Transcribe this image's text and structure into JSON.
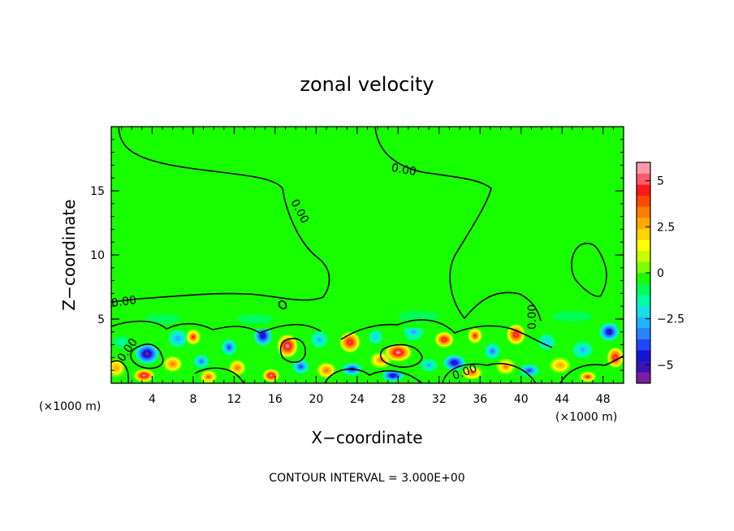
{
  "chart_data": {
    "type": "heatmap",
    "title": "zonal velocity",
    "xlabel": "X−coordinate",
    "ylabel": "Z−coordinate",
    "x_unit": "(×1000 m)",
    "y_unit": "(×1000 m)",
    "xlim": [
      0,
      50
    ],
    "ylim": [
      0,
      20
    ],
    "x_ticks": [
      4,
      8,
      12,
      16,
      20,
      24,
      28,
      32,
      36,
      40,
      44,
      48
    ],
    "y_ticks": [
      5,
      10,
      15
    ],
    "colorbar": {
      "range": [
        -6,
        6
      ],
      "ticks": [
        5,
        2.5,
        0,
        -2.5,
        -5
      ],
      "tick_labels": [
        "5",
        "2.5",
        "0",
        "−2.5",
        "−5"
      ],
      "colors": [
        "#7a1fa0",
        "#3a12b8",
        "#1414d4",
        "#1e46ff",
        "#2a82ff",
        "#20b4ff",
        "#16e0e6",
        "#00ff9e",
        "#00ff55",
        "#18ff00",
        "#7cff00",
        "#c8ff00",
        "#ffff00",
        "#ffd200",
        "#ffaa00",
        "#ff7e00",
        "#ff4a00",
        "#ff1a1a",
        "#ff5a6a",
        "#ff9aa8"
      ]
    },
    "contour_labels": [
      "0.00",
      "0.00",
      "0.00",
      "0.00",
      "0.00",
      "0.00"
    ],
    "contour_interval_text": "CONTOUR INTERVAL = 3.000E+00",
    "field_background_color": "#18ff00",
    "blobs": [
      {
        "x": 1.0,
        "z": 3.2,
        "v": -1.5,
        "sx": 1.2,
        "sz": 0.8
      },
      {
        "x": 0.5,
        "z": 1.2,
        "v": 2.5,
        "sx": 0.8,
        "sz": 0.7
      },
      {
        "x": 3.5,
        "z": 2.3,
        "v": -5.5,
        "sx": 1.3,
        "sz": 0.9
      },
      {
        "x": 3.2,
        "z": 0.6,
        "v": 5.5,
        "sx": 1.0,
        "sz": 0.5
      },
      {
        "x": 6.0,
        "z": 1.5,
        "v": 3.0,
        "sx": 0.9,
        "sz": 0.6
      },
      {
        "x": 6.5,
        "z": 3.5,
        "v": -2.5,
        "sx": 1.2,
        "sz": 0.9
      },
      {
        "x": 8.0,
        "z": 3.6,
        "v": 4.5,
        "sx": 0.7,
        "sz": 0.6
      },
      {
        "x": 8.8,
        "z": 1.7,
        "v": -3.5,
        "sx": 1.0,
        "sz": 0.7
      },
      {
        "x": 9.5,
        "z": 0.5,
        "v": 4.0,
        "sx": 0.8,
        "sz": 0.5
      },
      {
        "x": 11.5,
        "z": 2.8,
        "v": -4.0,
        "sx": 0.9,
        "sz": 0.8
      },
      {
        "x": 12.3,
        "z": 1.2,
        "v": 3.0,
        "sx": 0.8,
        "sz": 0.6
      },
      {
        "x": 14.8,
        "z": 3.7,
        "v": -5.0,
        "sx": 1.0,
        "sz": 0.9
      },
      {
        "x": 15.6,
        "z": 0.6,
        "v": 5.5,
        "sx": 0.8,
        "sz": 0.5
      },
      {
        "x": 17.2,
        "z": 2.9,
        "v": 5.5,
        "sx": 1.0,
        "sz": 0.9
      },
      {
        "x": 18.5,
        "z": 1.3,
        "v": -4.0,
        "sx": 1.0,
        "sz": 0.7
      },
      {
        "x": 20.3,
        "z": 3.4,
        "v": -3.0,
        "sx": 1.0,
        "sz": 0.8
      },
      {
        "x": 21.0,
        "z": 1.0,
        "v": 3.0,
        "sx": 0.9,
        "sz": 0.6
      },
      {
        "x": 23.3,
        "z": 3.2,
        "v": 5.0,
        "sx": 1.0,
        "sz": 0.8
      },
      {
        "x": 23.5,
        "z": 1.1,
        "v": -4.5,
        "sx": 1.2,
        "sz": 0.6
      },
      {
        "x": 25.8,
        "z": 3.6,
        "v": -2.0,
        "sx": 1.0,
        "sz": 0.8
      },
      {
        "x": 26.3,
        "z": 1.8,
        "v": 3.5,
        "sx": 1.0,
        "sz": 0.6
      },
      {
        "x": 28.0,
        "z": 2.4,
        "v": 5.5,
        "sx": 1.3,
        "sz": 0.7
      },
      {
        "x": 27.5,
        "z": 0.6,
        "v": -5.0,
        "sx": 1.2,
        "sz": 0.5
      },
      {
        "x": 29.5,
        "z": 4.0,
        "v": -3.0,
        "sx": 1.2,
        "sz": 0.8
      },
      {
        "x": 31.0,
        "z": 1.4,
        "v": -3.0,
        "sx": 1.0,
        "sz": 0.6
      },
      {
        "x": 32.5,
        "z": 3.4,
        "v": 5.0,
        "sx": 0.9,
        "sz": 0.6
      },
      {
        "x": 33.5,
        "z": 1.6,
        "v": -5.0,
        "sx": 1.2,
        "sz": 0.7
      },
      {
        "x": 35.5,
        "z": 3.7,
        "v": 4.5,
        "sx": 0.7,
        "sz": 0.6
      },
      {
        "x": 35.2,
        "z": 0.8,
        "v": 3.0,
        "sx": 1.0,
        "sz": 0.5
      },
      {
        "x": 37.2,
        "z": 2.5,
        "v": -3.5,
        "sx": 1.0,
        "sz": 0.8
      },
      {
        "x": 38.5,
        "z": 1.3,
        "v": 3.5,
        "sx": 0.9,
        "sz": 0.6
      },
      {
        "x": 39.5,
        "z": 3.8,
        "v": 5.0,
        "sx": 0.9,
        "sz": 0.8
      },
      {
        "x": 40.8,
        "z": 1.0,
        "v": -4.0,
        "sx": 1.2,
        "sz": 0.6
      },
      {
        "x": 42.5,
        "z": 3.2,
        "v": -2.0,
        "sx": 1.2,
        "sz": 0.9
      },
      {
        "x": 43.8,
        "z": 1.4,
        "v": 2.5,
        "sx": 1.0,
        "sz": 0.6
      },
      {
        "x": 46.0,
        "z": 2.6,
        "v": -3.0,
        "sx": 1.2,
        "sz": 0.8
      },
      {
        "x": 46.5,
        "z": 0.5,
        "v": 4.5,
        "sx": 0.8,
        "sz": 0.4
      },
      {
        "x": 48.6,
        "z": 4.0,
        "v": -5.0,
        "sx": 1.1,
        "sz": 0.8
      },
      {
        "x": 49.2,
        "z": 2.0,
        "v": 5.0,
        "sx": 0.8,
        "sz": 0.8
      },
      {
        "x": 5.0,
        "z": 5.0,
        "v": -0.9,
        "sx": 3.5,
        "sz": 0.8
      },
      {
        "x": 14.0,
        "z": 5.0,
        "v": -0.9,
        "sx": 3.5,
        "sz": 0.8
      },
      {
        "x": 30.0,
        "z": 5.2,
        "v": -0.9,
        "sx": 4.0,
        "sz": 0.9
      },
      {
        "x": 45.0,
        "z": 5.2,
        "v": -0.9,
        "sx": 4.0,
        "sz": 0.8
      }
    ]
  }
}
